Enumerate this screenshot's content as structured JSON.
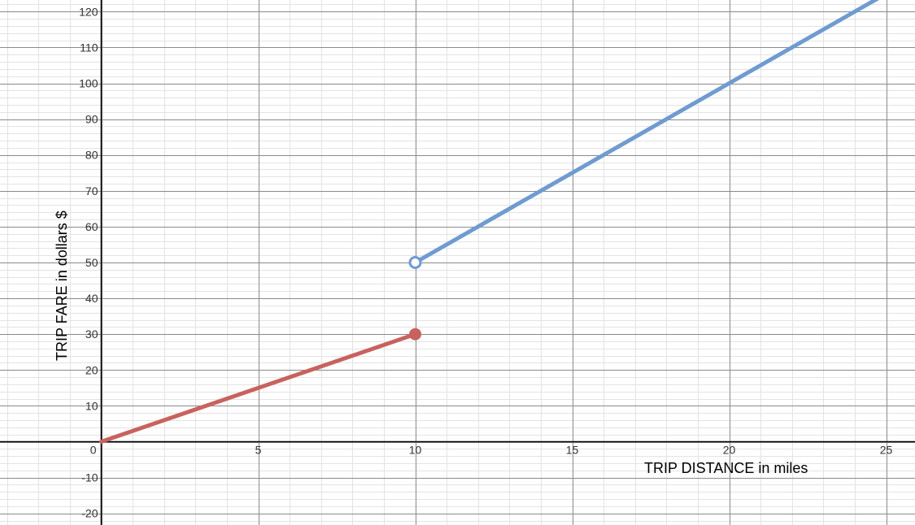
{
  "chart_data": {
    "type": "line",
    "xlabel": "TRIP DISTANCE in miles",
    "ylabel": "TRIP FARE in dollars $",
    "xlim": [
      0,
      26
    ],
    "ylim": [
      -23,
      124
    ],
    "x_major_step": 5,
    "y_major_step": 10,
    "minor_divisions": 5,
    "grid": true,
    "x_ticks": [
      {
        "value": 0,
        "label": "0"
      },
      {
        "value": 5,
        "label": "5"
      },
      {
        "value": 10,
        "label": "10"
      },
      {
        "value": 15,
        "label": "15"
      },
      {
        "value": 20,
        "label": "20"
      },
      {
        "value": 25,
        "label": "25"
      }
    ],
    "y_ticks": [
      {
        "value": -20,
        "label": "-20"
      },
      {
        "value": -10,
        "label": "-10"
      },
      {
        "value": 10,
        "label": "10"
      },
      {
        "value": 20,
        "label": "20"
      },
      {
        "value": 30,
        "label": "30"
      },
      {
        "value": 40,
        "label": "40"
      },
      {
        "value": 50,
        "label": "50"
      },
      {
        "value": 60,
        "label": "60"
      },
      {
        "value": 70,
        "label": "70"
      },
      {
        "value": 80,
        "label": "80"
      },
      {
        "value": 90,
        "label": "90"
      },
      {
        "value": 100,
        "label": "100"
      },
      {
        "value": 110,
        "label": "110"
      },
      {
        "value": 120,
        "label": "120"
      }
    ],
    "series": [
      {
        "color": "#c8625e",
        "x": [
          0,
          10
        ],
        "y": [
          0,
          30
        ],
        "endpoint": {
          "x": 10,
          "y": 30,
          "style": "closed"
        }
      },
      {
        "color": "#6f9bd1",
        "x": [
          10,
          26
        ],
        "y": [
          50,
          130
        ],
        "endpoint": {
          "x": 10,
          "y": 50,
          "style": "open"
        }
      }
    ]
  }
}
